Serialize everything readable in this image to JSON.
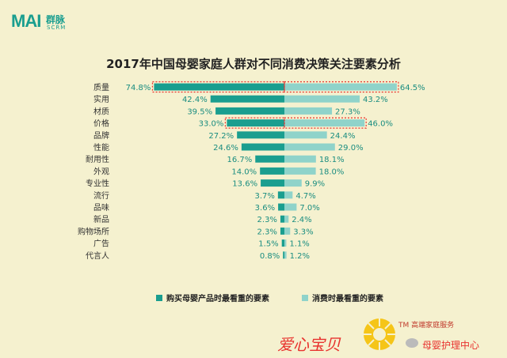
{
  "logo": {
    "mark": "MAI",
    "name": "群脉",
    "sub": "SCRM"
  },
  "chart_data": {
    "type": "bar",
    "title": "2017年中国母婴家庭人群对不同消费决策关注要素分析",
    "categories": [
      "质量",
      "实用",
      "材质",
      "价格",
      "品牌",
      "性能",
      "耐用性",
      "外观",
      "专业性",
      "流行",
      "品味",
      "新品",
      "购物场所",
      "广告",
      "代言人"
    ],
    "series": [
      {
        "name": "购买母婴产品时最看重的要素",
        "values": [
          74.8,
          42.4,
          39.5,
          33.0,
          27.2,
          24.6,
          16.7,
          14.0,
          13.6,
          3.7,
          3.6,
          2.3,
          2.3,
          1.5,
          0.8
        ],
        "labels": [
          "74.8%",
          "42.4%",
          "39.5%",
          "33.0%",
          "27.2%",
          "24.6%",
          "16.7%",
          "14.0%",
          "13.6%",
          "3.7%",
          "3.6%",
          "2.3%",
          "2.3%",
          "1.5%",
          "0.8%"
        ],
        "color": "#1a9e8f"
      },
      {
        "name": "消费时最看重的要素",
        "values": [
          64.5,
          43.2,
          27.3,
          46.0,
          24.4,
          29.0,
          18.1,
          18.0,
          9.9,
          4.7,
          7.0,
          2.4,
          3.3,
          1.1,
          1.2
        ],
        "labels": [
          "64.5%",
          "43.2%",
          "27.3%",
          "46.0%",
          "24.4%",
          "29.0%",
          "18.1%",
          "18.0%",
          "9.9%",
          "4.7%",
          "7.0%",
          "2.4%",
          "3.3%",
          "1.1%",
          "1.2%"
        ],
        "color": "#8fd3ca"
      }
    ],
    "highlighted": [
      "质量",
      "价格"
    ],
    "highlight_color": "#e8322e",
    "legend_position": "bottom"
  },
  "footer": {
    "left_text": "爱心宝贝",
    "tm_text": "TM 高端家庭服务",
    "right_text": "母婴护理中心"
  }
}
